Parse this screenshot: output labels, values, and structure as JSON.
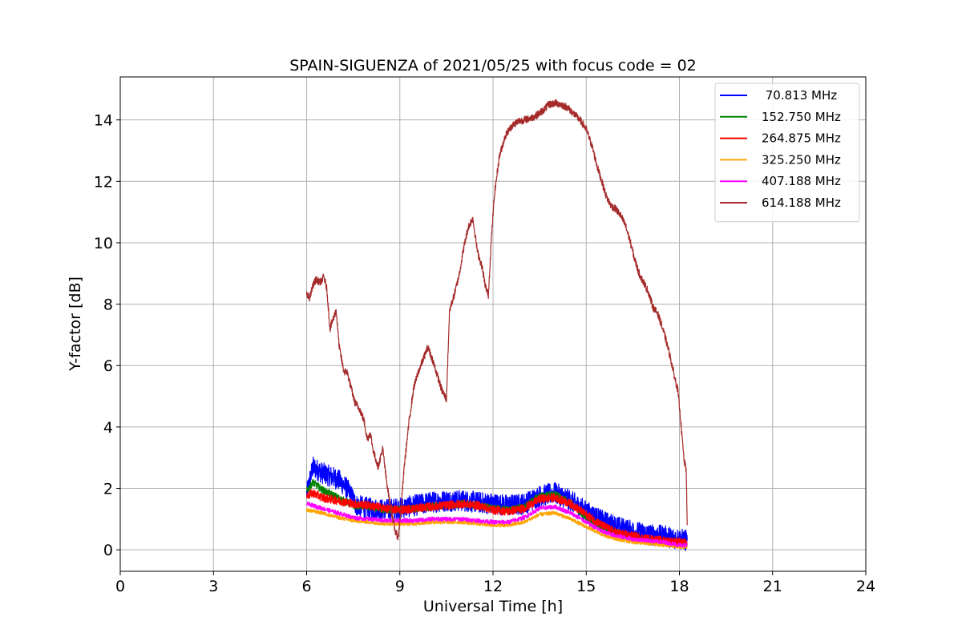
{
  "chart_data": {
    "type": "line",
    "title": "SPAIN-SIGUENZA of 2021/05/25 with focus code = 02",
    "xlabel": "Universal Time [h]",
    "ylabel": "Y-factor [dB]",
    "xlim": [
      0,
      24
    ],
    "ylim": [
      -0.7,
      15.4
    ],
    "xticks": [
      0,
      3,
      6,
      9,
      12,
      15,
      18,
      21,
      24
    ],
    "yticks": [
      0,
      2,
      4,
      6,
      8,
      10,
      12,
      14
    ],
    "grid": true,
    "legend_position": "top-right",
    "series": [
      {
        "name": " 70.813 MHz",
        "color": "#0000ff",
        "noise": 0.35,
        "x": [
          6.0,
          6.2,
          6.5,
          7.0,
          7.3,
          7.6,
          8.0,
          8.5,
          9.0,
          9.5,
          10.0,
          10.5,
          11.0,
          11.5,
          12.0,
          12.5,
          13.0,
          13.5,
          14.0,
          14.5,
          15.0,
          15.5,
          16.0,
          16.5,
          17.0,
          17.5,
          18.0,
          18.25
        ],
        "y": [
          1.8,
          2.7,
          2.5,
          2.3,
          2.0,
          1.45,
          1.35,
          1.3,
          1.35,
          1.45,
          1.55,
          1.6,
          1.6,
          1.55,
          1.5,
          1.45,
          1.5,
          1.75,
          1.85,
          1.6,
          1.25,
          0.95,
          0.75,
          0.6,
          0.5,
          0.45,
          0.35,
          0.3
        ]
      },
      {
        "name": "152.750 MHz",
        "color": "#008000",
        "noise": 0.12,
        "x": [
          6.0,
          6.2,
          6.5,
          7.0,
          7.5,
          8.0,
          8.5,
          9.0,
          9.5,
          10.0,
          10.5,
          11.0,
          11.5,
          12.0,
          12.5,
          13.0,
          13.5,
          14.0,
          14.5,
          15.0,
          15.5,
          16.0,
          16.5,
          17.0,
          17.5,
          18.0,
          18.25
        ],
        "y": [
          1.9,
          2.2,
          1.95,
          1.7,
          1.45,
          1.4,
          1.3,
          1.3,
          1.35,
          1.4,
          1.45,
          1.5,
          1.45,
          1.35,
          1.3,
          1.4,
          1.75,
          1.8,
          1.5,
          1.05,
          0.75,
          0.55,
          0.4,
          0.3,
          0.25,
          0.2,
          0.2
        ]
      },
      {
        "name": "264.875 MHz",
        "color": "#ff0000",
        "noise": 0.14,
        "x": [
          6.0,
          6.2,
          6.5,
          7.0,
          7.5,
          8.0,
          8.5,
          9.0,
          9.5,
          10.0,
          10.5,
          11.0,
          11.5,
          12.0,
          12.5,
          13.0,
          13.5,
          14.0,
          14.5,
          15.0,
          15.5,
          16.0,
          16.5,
          17.0,
          17.5,
          18.0,
          18.25
        ],
        "y": [
          1.75,
          1.85,
          1.7,
          1.6,
          1.5,
          1.45,
          1.35,
          1.3,
          1.35,
          1.4,
          1.45,
          1.5,
          1.45,
          1.3,
          1.25,
          1.35,
          1.65,
          1.7,
          1.5,
          1.15,
          0.8,
          0.55,
          0.45,
          0.35,
          0.3,
          0.25,
          0.2
        ]
      },
      {
        "name": "325.250 MHz",
        "color": "#ffa500",
        "noise": 0.06,
        "x": [
          6.0,
          6.5,
          7.0,
          7.5,
          8.0,
          8.5,
          9.0,
          9.5,
          10.0,
          10.5,
          11.0,
          11.5,
          12.0,
          12.5,
          13.0,
          13.5,
          14.0,
          14.5,
          15.0,
          15.5,
          16.0,
          16.5,
          17.0,
          17.5,
          18.0,
          18.25
        ],
        "y": [
          1.3,
          1.2,
          1.05,
          0.95,
          0.9,
          0.85,
          0.85,
          0.85,
          0.9,
          0.9,
          0.9,
          0.85,
          0.8,
          0.8,
          0.9,
          1.15,
          1.2,
          1.0,
          0.75,
          0.5,
          0.35,
          0.25,
          0.2,
          0.15,
          0.1,
          0.1
        ]
      },
      {
        "name": "407.188 MHz",
        "color": "#ff00ff",
        "noise": 0.07,
        "x": [
          6.0,
          6.5,
          7.0,
          7.5,
          8.0,
          8.5,
          9.0,
          9.5,
          10.0,
          10.5,
          11.0,
          11.5,
          12.0,
          12.5,
          13.0,
          13.5,
          14.0,
          14.5,
          15.0,
          15.5,
          16.0,
          16.5,
          17.0,
          17.5,
          18.0,
          18.25
        ],
        "y": [
          1.5,
          1.35,
          1.2,
          1.05,
          1.0,
          0.95,
          0.95,
          0.95,
          1.0,
          1.0,
          1.0,
          0.95,
          0.9,
          0.9,
          1.05,
          1.35,
          1.4,
          1.2,
          0.9,
          0.6,
          0.45,
          0.35,
          0.3,
          0.25,
          0.15,
          0.15
        ]
      },
      {
        "name": "614.188 MHz",
        "color": "#a52a2a",
        "noise": 0.12,
        "x": [
          6.0,
          6.1,
          6.2,
          6.3,
          6.45,
          6.55,
          6.65,
          6.75,
          6.85,
          6.95,
          7.05,
          7.2,
          7.3,
          7.45,
          7.55,
          7.7,
          7.85,
          7.95,
          8.05,
          8.15,
          8.3,
          8.45,
          8.55,
          8.7,
          8.85,
          8.95,
          9.05,
          9.15,
          9.3,
          9.45,
          9.6,
          9.75,
          9.9,
          10.05,
          10.2,
          10.35,
          10.5,
          10.6,
          10.75,
          10.9,
          11.05,
          11.2,
          11.35,
          11.5,
          11.65,
          11.75,
          11.85,
          11.95,
          12.05,
          12.2,
          12.4,
          12.6,
          12.8,
          13.0,
          13.2,
          13.4,
          13.6,
          13.8,
          14.0,
          14.2,
          14.4,
          14.6,
          14.8,
          15.0,
          15.2,
          15.35,
          15.5,
          15.65,
          15.8,
          15.95,
          16.1,
          16.25,
          16.4,
          16.55,
          16.7,
          16.85,
          17.0,
          17.15,
          17.3,
          17.4,
          17.55,
          17.7,
          17.85,
          17.95,
          18.05,
          18.15,
          18.22,
          18.25
        ],
        "y": [
          8.3,
          8.2,
          8.6,
          8.8,
          8.7,
          8.9,
          8.5,
          7.2,
          7.5,
          7.8,
          6.6,
          5.8,
          5.8,
          5.2,
          4.8,
          4.6,
          4.2,
          3.6,
          3.8,
          3.2,
          2.7,
          3.3,
          2.4,
          1.4,
          0.6,
          0.4,
          1.5,
          2.8,
          4.2,
          5.3,
          5.8,
          6.2,
          6.6,
          6.2,
          5.7,
          5.2,
          4.9,
          7.8,
          8.3,
          8.9,
          9.8,
          10.5,
          10.8,
          9.7,
          9.2,
          8.6,
          8.3,
          10.2,
          11.6,
          12.8,
          13.5,
          13.8,
          13.95,
          14.0,
          14.05,
          14.15,
          14.3,
          14.5,
          14.55,
          14.5,
          14.4,
          14.2,
          14.0,
          13.7,
          13.1,
          12.5,
          12.0,
          11.5,
          11.2,
          11.1,
          10.9,
          10.6,
          10.1,
          9.5,
          9.0,
          8.7,
          8.4,
          7.9,
          7.7,
          7.4,
          6.9,
          6.3,
          5.6,
          5.2,
          4.1,
          2.9,
          2.6,
          0.8
        ]
      }
    ]
  }
}
